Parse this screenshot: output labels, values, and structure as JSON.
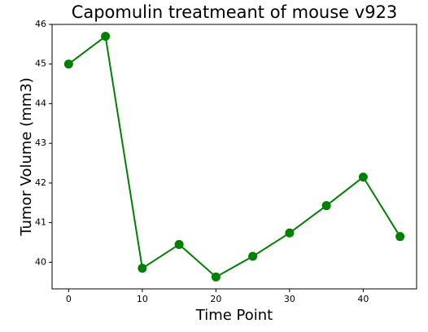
{
  "chart_data": {
    "type": "line",
    "title": "Capomulin treatmeant of mouse v923",
    "xlabel": "Time Point",
    "ylabel": "Tumor Volume (mm3)",
    "x": [
      0,
      5,
      10,
      15,
      20,
      25,
      30,
      35,
      40,
      45
    ],
    "series": [
      {
        "values": [
          45.0,
          45.7,
          39.85,
          40.45,
          39.63,
          40.15,
          40.74,
          41.43,
          42.15,
          40.65
        ],
        "color": "#008000",
        "marker": "circle"
      }
    ],
    "xlim": [
      -2.25,
      47.25
    ],
    "ylim": [
      39.33,
      46.0
    ],
    "xticks": [
      0,
      10,
      20,
      30,
      40
    ],
    "yticks": [
      40,
      41,
      42,
      43,
      44,
      45,
      46
    ],
    "grid": false,
    "legend": "none"
  }
}
